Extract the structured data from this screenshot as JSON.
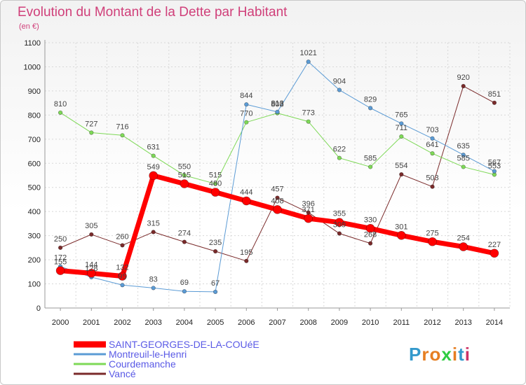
{
  "title": "Evolution du Montant de la Dette par Habitant",
  "unit": "(en €)",
  "logo": {
    "letters": [
      "P",
      "r",
      "o",
      "x",
      "i",
      "t",
      "i"
    ],
    "colors": [
      "#3399cc",
      "#e67e22",
      "#e67e22",
      "#2ecc40",
      "#e67e22",
      "#3399cc",
      "#cc3366"
    ]
  },
  "chart_data": {
    "type": "line",
    "x": [
      2000,
      2001,
      2002,
      2003,
      2004,
      2005,
      2006,
      2007,
      2008,
      2009,
      2010,
      2011,
      2012,
      2013,
      2014
    ],
    "ylim": [
      0,
      1100
    ],
    "yticks": [
      0,
      100,
      200,
      300,
      400,
      500,
      600,
      700,
      800,
      900,
      1000,
      1100
    ],
    "grid": true,
    "legend": "bottom-left",
    "series": [
      {
        "name": "Vancé",
        "color": "#7a2a2a",
        "width": 1,
        "marker": 2.8,
        "values": [
          250,
          305,
          260,
          315,
          274,
          235,
          195,
          457,
          396,
          309,
          268,
          554,
          503,
          920,
          851
        ]
      },
      {
        "name": "Courdemanche",
        "color": "#7ed957",
        "width": 1,
        "marker": 2.8,
        "values": [
          810,
          727,
          716,
          631,
          550,
          515,
          770,
          808,
          773,
          622,
          585,
          711,
          641,
          585,
          553
        ]
      },
      {
        "name": "Montreuil-le-Henri",
        "color": "#5b9bd5",
        "width": 1,
        "marker": 2.8,
        "values": [
          172,
          128,
          95,
          83,
          69,
          67,
          844,
          813,
          1021,
          904,
          829,
          765,
          703,
          635,
          567
        ]
      },
      {
        "name": "SAINT-GEORGES-DE-LA-COUéE",
        "color": "#ff0000",
        "width": 7,
        "marker": 6,
        "values": [
          155,
          144,
          132,
          549,
          515,
          480,
          444,
          408,
          371,
          355,
          330,
          301,
          275,
          254,
          227
        ]
      }
    ]
  }
}
